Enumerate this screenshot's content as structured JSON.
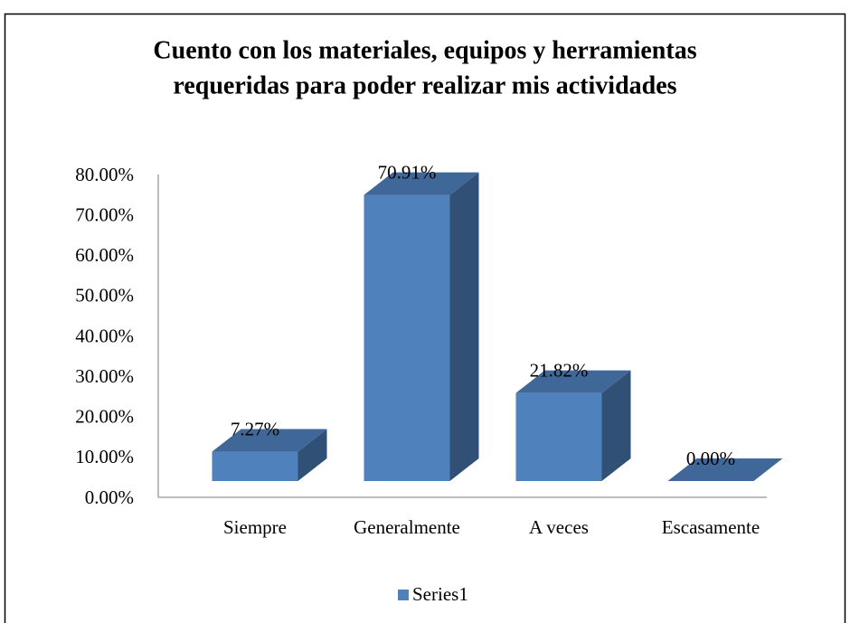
{
  "chart_data": {
    "type": "bar3d",
    "title": [
      "Cuento con los materiales, equipos y herramientas",
      "requeridas para poder realizar mis actividades"
    ],
    "categories": [
      "Siempre",
      "Generalmente",
      "A veces",
      "Escasamente"
    ],
    "series": [
      {
        "name": "Series1",
        "color": "#4f81bd",
        "values": [
          7.27,
          70.91,
          21.82,
          0
        ],
        "value_labels": [
          "7.27%",
          "70.91%",
          "21.82%",
          "0.00%"
        ]
      }
    ],
    "ylim": [
      0,
      80
    ],
    "yticks": [
      {
        "value": 0,
        "label": "0.00%"
      },
      {
        "value": 10,
        "label": "10.00%"
      },
      {
        "value": 20,
        "label": "20.00%"
      },
      {
        "value": 30,
        "label": "30.00%"
      },
      {
        "value": 40,
        "label": "40.00%"
      },
      {
        "value": 50,
        "label": "50.00%"
      },
      {
        "value": 60,
        "label": "60.00%"
      },
      {
        "value": 70,
        "label": "70.00%"
      },
      {
        "value": 80,
        "label": "80.00%"
      }
    ],
    "grid": false,
    "legend": "bottom"
  }
}
